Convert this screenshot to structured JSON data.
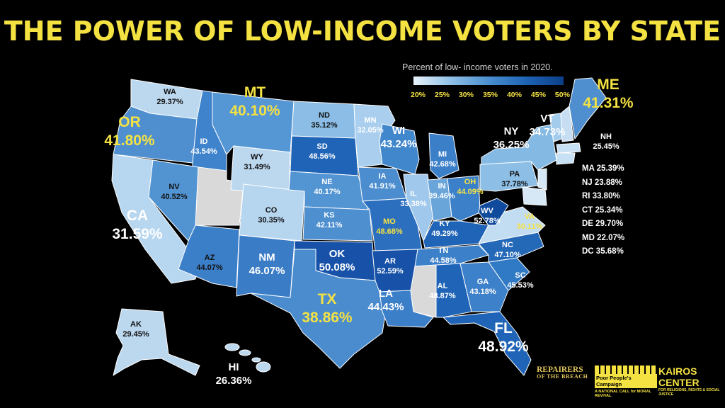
{
  "title": "THE POWER OF LOW-INCOME VOTERS BY STATE",
  "legend": {
    "title": "Percent of low- income voters in 2020.",
    "ticks": [
      "20%",
      "25%",
      "30%",
      "35%",
      "40%",
      "45%",
      "50%"
    ]
  },
  "states": {
    "WA": {
      "abbr": "WA",
      "pct": "29.37%"
    },
    "OR": {
      "abbr": "OR",
      "pct": "41.80%"
    },
    "CA": {
      "abbr": "CA",
      "pct": "31.59%"
    },
    "ID": {
      "abbr": "ID",
      "pct": "43.54%"
    },
    "NV": {
      "abbr": "NV",
      "pct": "40.52%"
    },
    "MT": {
      "abbr": "MT",
      "pct": "40.10%"
    },
    "WY": {
      "abbr": "WY",
      "pct": "31.49%"
    },
    "CO": {
      "abbr": "CO",
      "pct": "30.35%"
    },
    "AZ": {
      "abbr": "AZ",
      "pct": "44.07%"
    },
    "NM": {
      "abbr": "NM",
      "pct": "46.07%"
    },
    "ND": {
      "abbr": "ND",
      "pct": "35.12%"
    },
    "SD": {
      "abbr": "SD",
      "pct": "48.56%"
    },
    "NE": {
      "abbr": "NE",
      "pct": "40.17%"
    },
    "KS": {
      "abbr": "KS",
      "pct": "42.11%"
    },
    "OK": {
      "abbr": "OK",
      "pct": "50.08%"
    },
    "TX": {
      "abbr": "TX",
      "pct": "38.86%"
    },
    "MN": {
      "abbr": "MN",
      "pct": "32.05%"
    },
    "IA": {
      "abbr": "IA",
      "pct": "41.91%"
    },
    "MO": {
      "abbr": "MO",
      "pct": "48.68%"
    },
    "AR": {
      "abbr": "AR",
      "pct": "52.59%"
    },
    "LA": {
      "abbr": "LA",
      "pct": "44.43%"
    },
    "WI": {
      "abbr": "WI",
      "pct": "43.24%"
    },
    "IL": {
      "abbr": "IL",
      "pct": "33.38%"
    },
    "MI": {
      "abbr": "MI",
      "pct": "42.68%"
    },
    "IN": {
      "abbr": "IN",
      "pct": "39.46%"
    },
    "OH": {
      "abbr": "OH",
      "pct": "44.09%"
    },
    "KY": {
      "abbr": "KY",
      "pct": "49.29%"
    },
    "TN": {
      "abbr": "TN",
      "pct": "44.58%"
    },
    "AL": {
      "abbr": "AL",
      "pct": "48.87%"
    },
    "GA": {
      "abbr": "GA",
      "pct": "43.18%"
    },
    "FL": {
      "abbr": "FL",
      "pct": "48.92%"
    },
    "SC": {
      "abbr": "SC",
      "pct": "45.53%"
    },
    "NC": {
      "abbr": "NC",
      "pct": "47.10%"
    },
    "VA": {
      "abbr": "VA",
      "pct": "30.11%"
    },
    "WV": {
      "abbr": "WV",
      "pct": "52.78%"
    },
    "PA": {
      "abbr": "PA",
      "pct": "37.78%"
    },
    "NY": {
      "abbr": "NY",
      "pct": "36.25%"
    },
    "VT": {
      "abbr": "VT",
      "pct": "34.73%"
    },
    "NH": {
      "abbr": "NH",
      "pct": "25.45%"
    },
    "ME": {
      "abbr": "ME",
      "pct": "41.31%"
    },
    "AK": {
      "abbr": "AK",
      "pct": "29.45%"
    },
    "HI": {
      "abbr": "HI",
      "pct": "26.36%"
    }
  },
  "small_states": [
    "MA 25.39%",
    "NJ 23.88%",
    "RI 33.80%",
    "CT 25.34%",
    "DE 29.70%",
    "MD 22.07%",
    "DC 35.68%"
  ],
  "colors": {
    "title": "#f4e242",
    "highlight": "#f4e242",
    "no_data": "#d9d9d9",
    "background": "#000000"
  },
  "logos": {
    "repairers_line1": "REPAIRERS",
    "repairers_line2": "OF THE BREACH",
    "ppc_title": "Poor People's Campaign",
    "ppc_sub": "A NATIONAL CALL for MORAL REVIVAL",
    "kairos_title": "KAIROS CENTER",
    "kairos_sub": "FOR RELIGIONS, RIGHTS & SOCIAL JUSTICE"
  }
}
